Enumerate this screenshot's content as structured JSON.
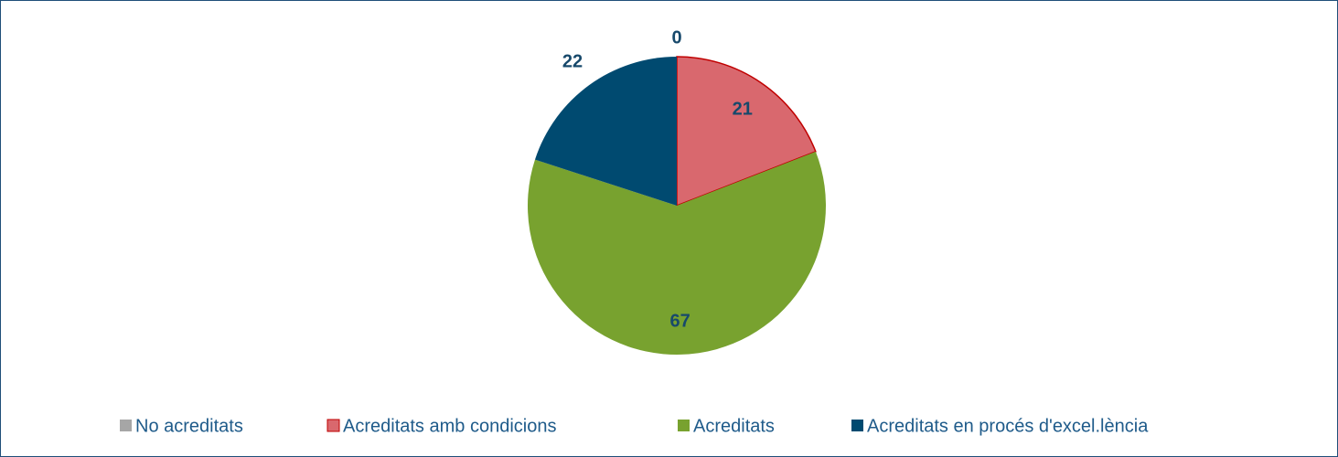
{
  "chart_data": {
    "type": "pie",
    "categories": [
      "No acreditats",
      "Acreditats amb condicions",
      "Acreditats",
      "Acreditats en procés d'excel.lència"
    ],
    "values": [
      0,
      21,
      67,
      22
    ],
    "colors": [
      "#a6a6a6",
      "#d9686e",
      "#78a22f",
      "#004a70"
    ],
    "legend": "bottom"
  }
}
